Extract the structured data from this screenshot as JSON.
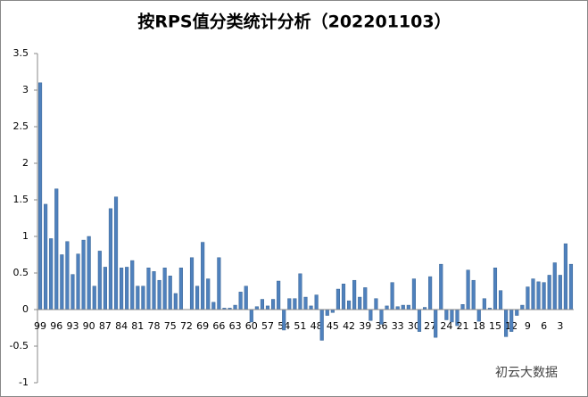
{
  "chart_data": {
    "type": "bar",
    "title": "按RPS值分类统计分析（202201103）",
    "watermark": "初云大数据",
    "categories": [
      "99",
      null,
      null,
      "96",
      null,
      null,
      "93",
      null,
      null,
      "90",
      null,
      null,
      "87",
      null,
      null,
      "84",
      null,
      null,
      "81",
      null,
      null,
      "78",
      null,
      null,
      "75",
      null,
      null,
      "72",
      null,
      null,
      "69",
      null,
      null,
      "66",
      null,
      null,
      "63",
      null,
      null,
      "60",
      null,
      null,
      "57",
      null,
      null,
      "54",
      null,
      null,
      "51",
      null,
      null,
      "48",
      null,
      null,
      "45",
      null,
      null,
      "42",
      null,
      null,
      "39",
      null,
      null,
      "36",
      null,
      null,
      "33",
      null,
      null,
      "30",
      null,
      null,
      "27",
      null,
      null,
      "24",
      null,
      null,
      "21",
      null,
      null,
      "18",
      null,
      null,
      "15",
      null,
      null,
      "12",
      null,
      null,
      "9",
      null,
      null,
      "6",
      null,
      null,
      "3",
      null,
      null
    ],
    "values": [
      3.1,
      1.44,
      0.97,
      1.65,
      0.75,
      0.93,
      0.48,
      0.76,
      0.95,
      1.0,
      0.32,
      0.8,
      0.58,
      1.38,
      1.54,
      0.57,
      0.58,
      0.67,
      0.32,
      0.32,
      0.57,
      0.52,
      0.4,
      0.57,
      0.46,
      0.22,
      0.57,
      0.0,
      0.71,
      0.32,
      0.92,
      0.42,
      0.1,
      0.71,
      0.02,
      0.02,
      0.06,
      0.24,
      0.32,
      -0.17,
      0.04,
      0.14,
      0.05,
      0.14,
      0.39,
      -0.28,
      0.15,
      0.15,
      0.49,
      0.17,
      0.05,
      0.2,
      -0.42,
      -0.08,
      -0.04,
      0.28,
      0.35,
      0.12,
      0.4,
      0.17,
      0.3,
      -0.15,
      0.15,
      -0.2,
      0.05,
      0.37,
      0.04,
      0.06,
      0.06,
      0.42,
      -0.3,
      0.03,
      0.45,
      -0.38,
      0.62,
      -0.14,
      -0.17,
      -0.22,
      0.07,
      0.54,
      0.4,
      -0.16,
      0.15,
      0.02,
      0.57,
      0.26,
      -0.37,
      -0.3,
      -0.08,
      0.06,
      0.31,
      0.42,
      0.38,
      0.37,
      0.47,
      0.64,
      0.47,
      0.9,
      0.62
    ],
    "color": "#4f81bd",
    "ylim": [
      -1,
      3.5
    ],
    "yticks": [
      -1,
      -0.5,
      0,
      0.5,
      1,
      1.5,
      2,
      2.5,
      3,
      3.5
    ],
    "grid": false
  }
}
